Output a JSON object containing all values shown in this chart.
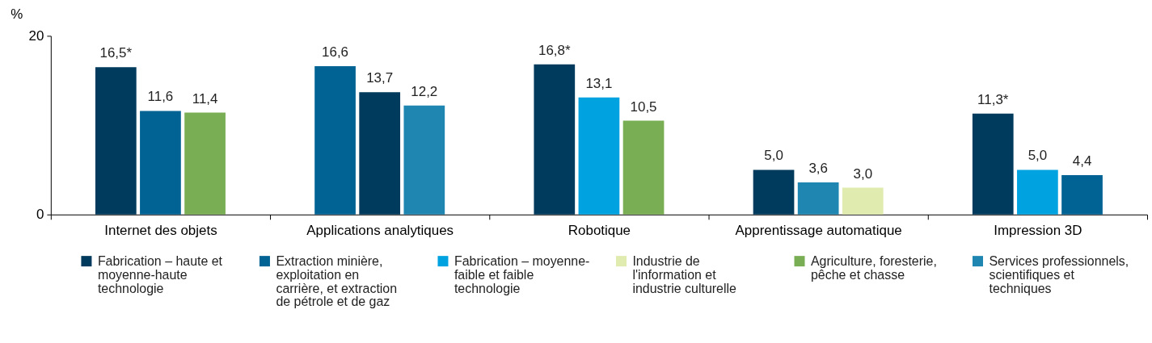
{
  "chart_data": {
    "type": "bar",
    "ylabel": "%",
    "categories": [
      "Internet des objets",
      "Applications analytiques",
      "Robotique",
      "Apprentissage automatique",
      "Impression 3D"
    ],
    "series": [
      {
        "name": "Fabrication – haute et moyenne-haute technologie",
        "color": "#003a5c",
        "values": [
          16.5,
          13.7,
          16.8,
          5.0,
          11.3
        ],
        "value_labels": [
          "16,5*",
          "13,7",
          "16,8*",
          "5,0",
          "11,3*"
        ]
      },
      {
        "name": "Extraction minière, exploitation en carrière, et extraction de pétrole et de gaz",
        "color": "#006394",
        "values": [
          11.6,
          16.6,
          null,
          null,
          4.4
        ],
        "value_labels": [
          "11,6",
          "16,6",
          null,
          null,
          "4,4"
        ]
      },
      {
        "name": "Fabrication – moyenne-faible et faible technologie",
        "color": "#00a3e0",
        "values": [
          null,
          null,
          13.1,
          null,
          5.0
        ],
        "value_labels": [
          null,
          null,
          "13,1",
          null,
          "5,0"
        ]
      },
      {
        "name": "Industrie de l'information et industrie culturelle",
        "color": "#e0ebb0",
        "values": [
          null,
          null,
          null,
          3.0,
          null
        ],
        "value_labels": [
          null,
          null,
          null,
          "3,0",
          null
        ]
      },
      {
        "name": "Agriculture, foresterie, pêche et chasse",
        "color": "#7aae55",
        "values": [
          11.4,
          null,
          10.5,
          null,
          null
        ],
        "value_labels": [
          "11,4",
          null,
          "10,5",
          null,
          null
        ]
      },
      {
        "name": "Services professionnels, scientifiques et techniques",
        "color": "#1f86b2",
        "values": [
          null,
          12.2,
          null,
          3.6,
          null
        ],
        "value_labels": [
          null,
          "12,2",
          null,
          "3,6",
          null
        ]
      }
    ],
    "ylim": [
      0,
      20
    ],
    "yticks": [
      0,
      20
    ],
    "grid": false,
    "legend": "bottom"
  }
}
